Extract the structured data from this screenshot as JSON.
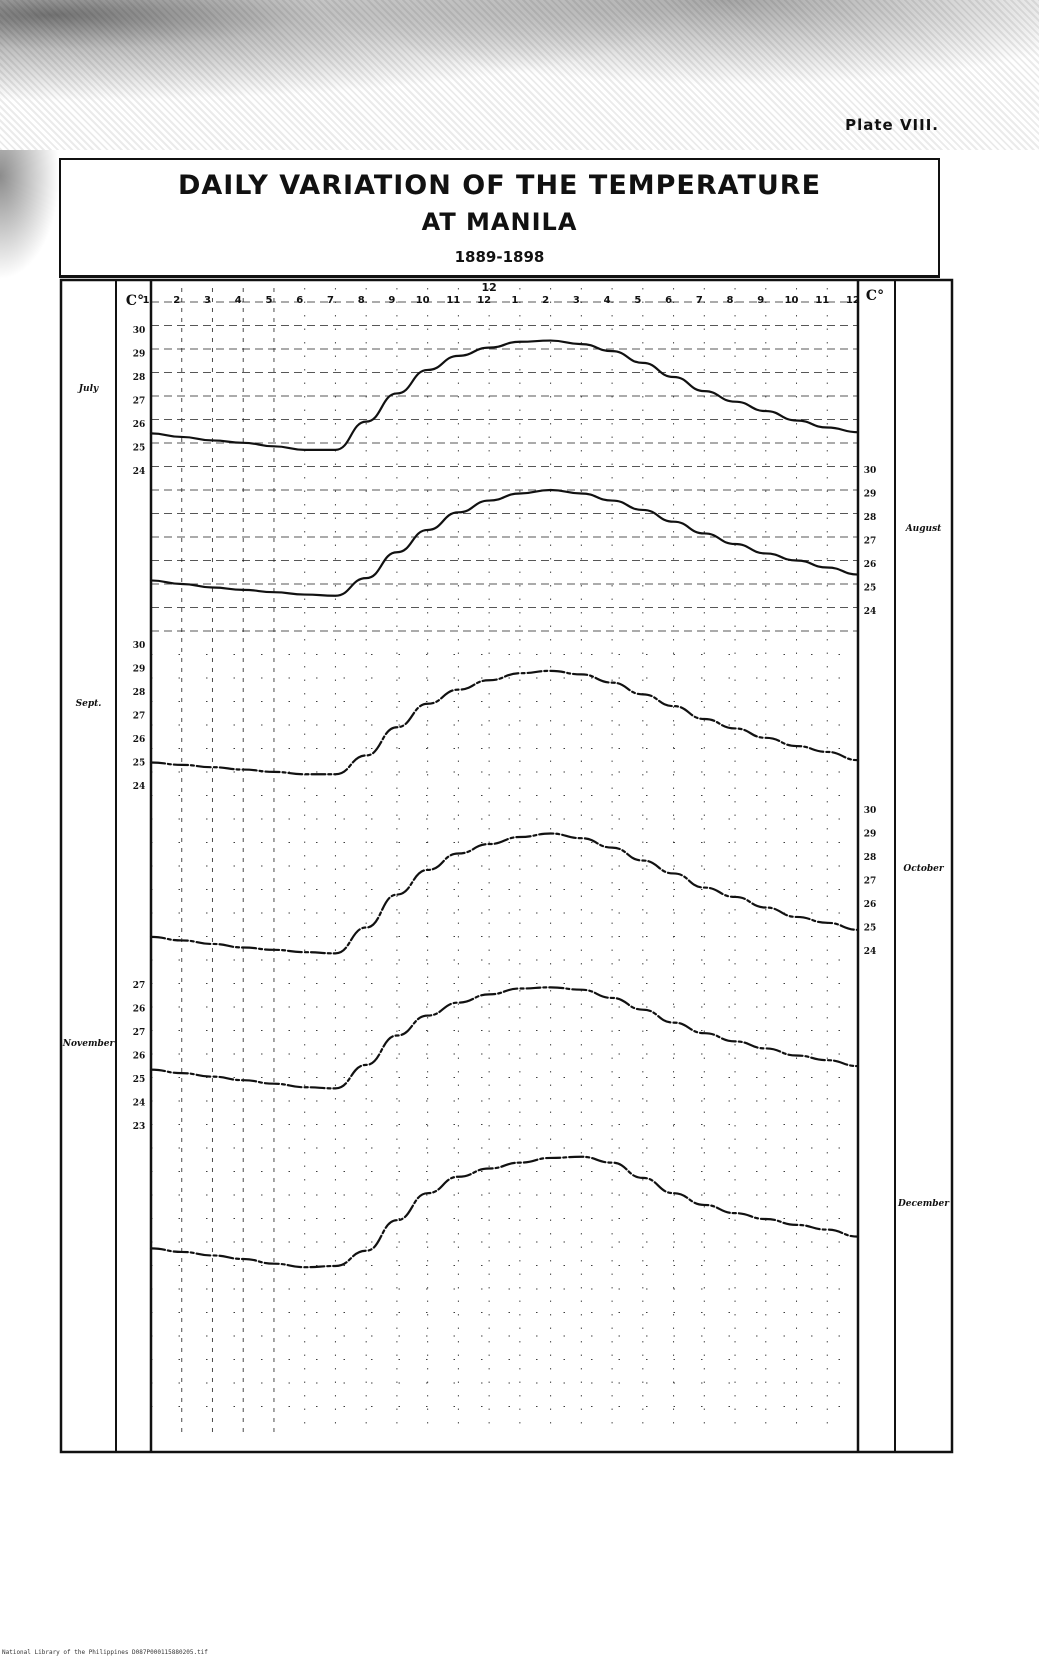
{
  "plate_label": "Plate VIII.",
  "title_line1": "DAILY VARIATION OF THE TEMPERATURE",
  "title_line2": "AT MANILA",
  "years": "1889-1898",
  "footer": "National Library of the Philippines    D087P000115880205.tif",
  "unit_left": "C°",
  "unit_right": "C°",
  "colors": {
    "ink": "#111111",
    "paper": "#ffffff"
  },
  "chart_data": {
    "type": "line",
    "x_ticks": [
      "1",
      "2",
      "3",
      "4",
      "5",
      "6",
      "7",
      "8",
      "9",
      "10",
      "11",
      "12",
      "1",
      "2",
      "3",
      "4",
      "5",
      "6",
      "7",
      "8",
      "9",
      "10",
      "11",
      "12"
    ],
    "noon_mark": "12",
    "x": [
      1,
      2,
      3,
      4,
      5,
      6,
      7,
      8,
      9,
      10,
      11,
      12,
      13,
      14,
      15,
      16,
      17,
      18,
      19,
      20,
      21,
      22,
      23,
      24
    ],
    "grid": true,
    "series": [
      {
        "name": "July",
        "axis": "left",
        "ticks": [
          "30",
          "29",
          "28",
          "27",
          "26",
          "25",
          "24"
        ],
        "ylim": [
          24,
          30.5
        ],
        "values": [
          26.1,
          25.95,
          25.8,
          25.7,
          25.55,
          25.4,
          25.4,
          26.6,
          27.8,
          28.8,
          29.4,
          29.75,
          30.0,
          30.05,
          29.9,
          29.6,
          29.1,
          28.5,
          27.9,
          27.45,
          27.05,
          26.65,
          26.35,
          26.15
        ]
      },
      {
        "name": "August",
        "axis": "right",
        "ticks": [
          "30",
          "29",
          "28",
          "27",
          "26",
          "25",
          "24"
        ],
        "ylim": [
          24,
          30.5
        ],
        "values": [
          25.8,
          25.65,
          25.5,
          25.4,
          25.3,
          25.2,
          25.15,
          25.9,
          27.0,
          27.95,
          28.7,
          29.2,
          29.5,
          29.65,
          29.5,
          29.2,
          28.8,
          28.3,
          27.8,
          27.35,
          26.95,
          26.65,
          26.35,
          26.05
        ]
      },
      {
        "name": "Sept.",
        "axis": "left",
        "ticks": [
          "30",
          "29",
          "28",
          "27",
          "26",
          "25",
          "24"
        ],
        "ylim": [
          24,
          30.5
        ],
        "values": [
          25.5,
          25.4,
          25.3,
          25.2,
          25.1,
          25.0,
          25.0,
          25.8,
          27.0,
          28.0,
          28.6,
          29.0,
          29.3,
          29.4,
          29.25,
          28.9,
          28.4,
          27.9,
          27.35,
          26.95,
          26.55,
          26.2,
          25.95,
          25.6
        ]
      },
      {
        "name": "October",
        "axis": "right",
        "ticks": [
          "30",
          "29",
          "28",
          "27",
          "26",
          "25",
          "24"
        ],
        "ylim": [
          24,
          30.5
        ],
        "values": [
          25.1,
          24.95,
          24.8,
          24.65,
          24.55,
          24.45,
          24.4,
          25.5,
          26.9,
          27.95,
          28.65,
          29.05,
          29.35,
          29.5,
          29.3,
          28.9,
          28.35,
          27.8,
          27.2,
          26.8,
          26.35,
          25.95,
          25.7,
          25.4
        ]
      },
      {
        "name": "November",
        "axis": "left",
        "ticks": [
          "27",
          "26",
          "27",
          "26",
          "25",
          "24",
          "23"
        ],
        "ylim": [
          22.6,
          28.1
        ],
        "values": [
          24.5,
          24.35,
          24.2,
          24.05,
          23.9,
          23.75,
          23.7,
          24.7,
          25.95,
          26.8,
          27.35,
          27.7,
          27.95,
          28.0,
          27.9,
          27.55,
          27.05,
          26.5,
          26.05,
          25.7,
          25.4,
          25.1,
          24.9,
          24.65
        ]
      },
      {
        "name": "December",
        "axis": "right",
        "ticks": [],
        "ylim": [
          22.6,
          28.1
        ],
        "values": [
          23.7,
          23.55,
          23.4,
          23.25,
          23.05,
          22.9,
          22.95,
          23.6,
          24.9,
          26.05,
          26.75,
          27.1,
          27.35,
          27.55,
          27.6,
          27.35,
          26.7,
          26.05,
          25.55,
          25.2,
          24.95,
          24.7,
          24.5,
          24.2
        ]
      }
    ]
  }
}
